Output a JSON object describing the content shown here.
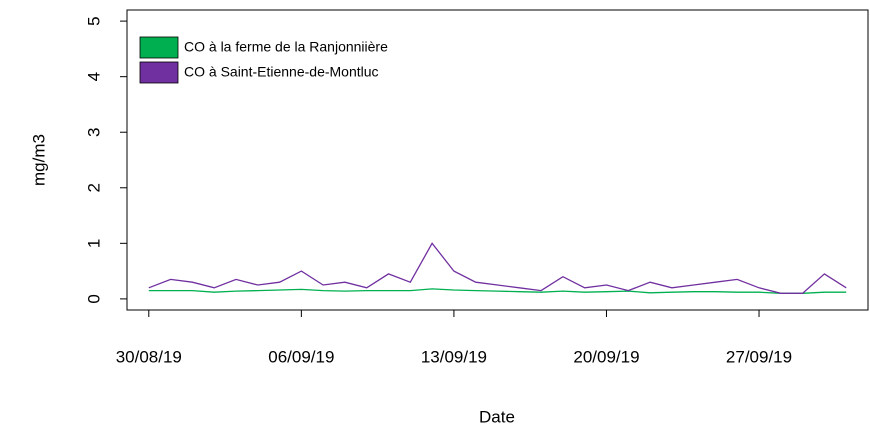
{
  "chart_data": {
    "type": "line",
    "x_label": "Date",
    "y_label": "mg/m3",
    "x": [
      "30/08/19",
      "31/08/19",
      "01/09/19",
      "02/09/19",
      "03/09/19",
      "04/09/19",
      "05/09/19",
      "06/09/19",
      "07/09/19",
      "08/09/19",
      "09/09/19",
      "10/09/19",
      "11/09/19",
      "12/09/19",
      "13/09/19",
      "14/09/19",
      "15/09/19",
      "16/09/19",
      "17/09/19",
      "18/09/19",
      "19/09/19",
      "20/09/19",
      "21/09/19",
      "22/09/19",
      "23/09/19",
      "24/09/19",
      "25/09/19",
      "26/09/19",
      "27/09/19",
      "28/09/19",
      "29/09/19",
      "30/09/19",
      "01/10/19"
    ],
    "series": [
      {
        "name": "CO à la ferme de la Ranjonniière",
        "color": "#00b050",
        "values": [
          0.15,
          0.15,
          0.15,
          0.12,
          0.14,
          0.15,
          0.16,
          0.17,
          0.15,
          0.14,
          0.15,
          0.15,
          0.15,
          0.18,
          0.16,
          0.15,
          0.14,
          0.13,
          0.12,
          0.14,
          0.12,
          0.13,
          0.14,
          0.11,
          0.12,
          0.13,
          0.13,
          0.12,
          0.12,
          0.1,
          0.1,
          0.12,
          0.12
        ]
      },
      {
        "name": "CO à Saint-Etienne-de-Montluc",
        "color": "#7030a0",
        "values": [
          0.2,
          0.35,
          0.3,
          0.2,
          0.35,
          0.25,
          0.3,
          0.5,
          0.25,
          0.3,
          0.2,
          0.45,
          0.3,
          1.0,
          0.5,
          0.3,
          0.25,
          0.2,
          0.15,
          0.4,
          0.2,
          0.25,
          0.15,
          0.3,
          0.2,
          0.25,
          0.3,
          0.35,
          0.2,
          0.1,
          0.1,
          0.45,
          0.2
        ]
      }
    ],
    "xlim": [
      "29/08/19",
      "02/10/19"
    ],
    "xticks": [
      "30/08/19",
      "06/09/19",
      "13/09/19",
      "20/09/19",
      "27/09/19"
    ],
    "ylim": [
      -0.2,
      5.2
    ],
    "yticks": [
      0,
      1,
      2,
      3,
      4,
      5
    ],
    "legend": "top-left"
  }
}
